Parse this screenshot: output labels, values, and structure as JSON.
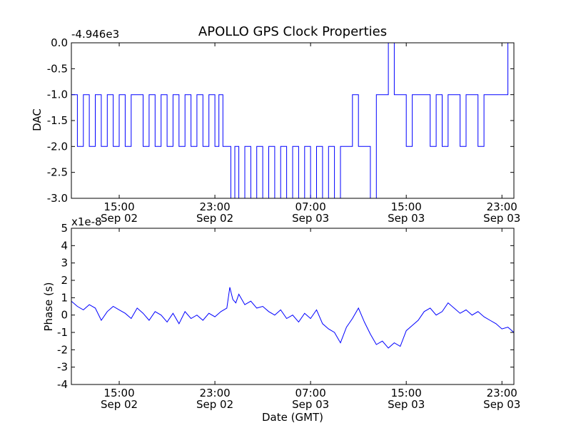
{
  "chart_data": [
    {
      "type": "line",
      "title": "APOLLO GPS Clock Properties",
      "ylabel": "DAC",
      "xlabel": "",
      "offset_text": "-4.946e3",
      "ylim": [
        -3.0,
        0.0
      ],
      "yticks": [
        0.0,
        -0.5,
        -1.0,
        -1.5,
        -2.0,
        -2.5,
        -3.0
      ],
      "ytick_labels": [
        "0.0",
        "-0.5",
        "-1.0",
        "-1.5",
        "-2.0",
        "-2.5",
        "-3.0"
      ],
      "xlim": [
        "2014-09-02 11:00",
        "2014-09-04 00:00"
      ],
      "xticks": [
        "2014-09-02 15:00",
        "2014-09-02 23:00",
        "2014-09-03 07:00",
        "2014-09-03 15:00",
        "2014-09-03 23:00"
      ],
      "xtick_labels": [
        [
          "15:00",
          "Sep 02"
        ],
        [
          "23:00",
          "Sep 02"
        ],
        [
          "07:00",
          "Sep 03"
        ],
        [
          "15:00",
          "Sep 03"
        ],
        [
          "23:00",
          "Sep 03"
        ]
      ],
      "grid": false,
      "color": "#0000ff",
      "series": [
        {
          "x": [
            "2014-09-02 11:00",
            "2014-09-02 11:30",
            "2014-09-02 12:00",
            "2014-09-02 12:30",
            "2014-09-02 13:00",
            "2014-09-02 13:30",
            "2014-09-02 14:00",
            "2014-09-02 14:30",
            "2014-09-02 15:00",
            "2014-09-02 15:30",
            "2014-09-02 16:00",
            "2014-09-02 17:00",
            "2014-09-02 17:30",
            "2014-09-02 18:00",
            "2014-09-02 18:30",
            "2014-09-02 19:00",
            "2014-09-02 19:30",
            "2014-09-02 20:00",
            "2014-09-02 20:30",
            "2014-09-02 21:00",
            "2014-09-02 21:30",
            "2014-09-02 22:00",
            "2014-09-02 22:30",
            "2014-09-02 23:00",
            "2014-09-02 23:20",
            "2014-09-02 23:40",
            "2014-09-03 00:00",
            "2014-09-03 00:20",
            "2014-09-03 00:40",
            "2014-09-03 01:00",
            "2014-09-03 01:30",
            "2014-09-03 02:00",
            "2014-09-03 02:30",
            "2014-09-03 03:00",
            "2014-09-03 03:30",
            "2014-09-03 04:00",
            "2014-09-03 04:30",
            "2014-09-03 05:00",
            "2014-09-03 05:30",
            "2014-09-03 06:00",
            "2014-09-03 06:30",
            "2014-09-03 07:00",
            "2014-09-03 07:30",
            "2014-09-03 08:00",
            "2014-09-03 08:30",
            "2014-09-03 09:00",
            "2014-09-03 09:30",
            "2014-09-03 10:00",
            "2014-09-03 10:30",
            "2014-09-03 11:00",
            "2014-09-03 11:30",
            "2014-09-03 12:00",
            "2014-09-03 12:30",
            "2014-09-03 13:00",
            "2014-09-03 13:30",
            "2014-09-03 14:00",
            "2014-09-03 14:30",
            "2014-09-03 15:00",
            "2014-09-03 15:30",
            "2014-09-03 16:00",
            "2014-09-03 17:00",
            "2014-09-03 17:30",
            "2014-09-03 18:00",
            "2014-09-03 18:30",
            "2014-09-03 19:00",
            "2014-09-03 19:30",
            "2014-09-03 20:00",
            "2014-09-03 20:30",
            "2014-09-03 21:00",
            "2014-09-03 21:30",
            "2014-09-03 22:00",
            "2014-09-03 22:30",
            "2014-09-03 23:00",
            "2014-09-03 23:30",
            "2014-09-04 00:00"
          ],
          "values": [
            -1.0,
            -2.0,
            -1.0,
            -2.0,
            -1.0,
            -2.0,
            -1.0,
            -2.0,
            -1.0,
            -2.0,
            -1.0,
            -2.0,
            -1.0,
            -2.0,
            -1.0,
            -2.0,
            -1.0,
            -2.0,
            -1.0,
            -2.0,
            -1.0,
            -2.0,
            -1.0,
            -2.0,
            -1.0,
            -2.0,
            -2.0,
            -3.0,
            -2.0,
            -3.0,
            -2.0,
            -3.0,
            -2.0,
            -3.0,
            -2.0,
            -3.0,
            -2.0,
            -3.0,
            -2.0,
            -3.0,
            -2.0,
            -3.0,
            -2.0,
            -3.0,
            -2.0,
            -3.0,
            -2.0,
            -2.0,
            -1.0,
            -2.0,
            -2.0,
            -3.0,
            -1.0,
            -1.0,
            0.0,
            -1.0,
            -1.0,
            -2.0,
            -1.0,
            -1.0,
            -2.0,
            -1.0,
            -2.0,
            -1.0,
            -1.0,
            -2.0,
            -1.0,
            -1.0,
            -2.0,
            -1.0,
            -1.0,
            -1.0,
            -1.0,
            0.0,
            -1.0
          ]
        }
      ]
    },
    {
      "type": "line",
      "title": "",
      "ylabel": "Phase (s)",
      "xlabel": "Date (GMT)",
      "offset_text": "x1e-8",
      "ylim": [
        -4,
        5
      ],
      "yticks": [
        5,
        4,
        3,
        2,
        1,
        0,
        -1,
        -2,
        -3,
        -4
      ],
      "ytick_labels": [
        "5",
        "4",
        "3",
        "2",
        "1",
        "0",
        "-1",
        "-2",
        "-3",
        "-4"
      ],
      "xlim": [
        "2014-09-02 11:00",
        "2014-09-04 00:00"
      ],
      "xticks": [
        "2014-09-02 15:00",
        "2014-09-02 23:00",
        "2014-09-03 07:00",
        "2014-09-03 15:00",
        "2014-09-03 23:00"
      ],
      "xtick_labels": [
        [
          "15:00",
          "Sep 02"
        ],
        [
          "23:00",
          "Sep 02"
        ],
        [
          "07:00",
          "Sep 03"
        ],
        [
          "15:00",
          "Sep 03"
        ],
        [
          "23:00",
          "Sep 03"
        ]
      ],
      "grid": false,
      "color": "#0000ff",
      "series": [
        {
          "x": [
            "2014-09-02 11:00",
            "2014-09-02 11:30",
            "2014-09-02 12:00",
            "2014-09-02 12:30",
            "2014-09-02 13:00",
            "2014-09-02 13:30",
            "2014-09-02 14:00",
            "2014-09-02 14:30",
            "2014-09-02 15:00",
            "2014-09-02 15:30",
            "2014-09-02 16:00",
            "2014-09-02 16:30",
            "2014-09-02 17:00",
            "2014-09-02 17:30",
            "2014-09-02 18:00",
            "2014-09-02 18:30",
            "2014-09-02 19:00",
            "2014-09-02 19:30",
            "2014-09-02 20:00",
            "2014-09-02 20:30",
            "2014-09-02 21:00",
            "2014-09-02 21:30",
            "2014-09-02 22:00",
            "2014-09-02 22:30",
            "2014-09-02 23:00",
            "2014-09-02 23:30",
            "2014-09-03 00:00",
            "2014-09-03 00:15",
            "2014-09-03 00:30",
            "2014-09-03 00:45",
            "2014-09-03 01:00",
            "2014-09-03 01:30",
            "2014-09-03 02:00",
            "2014-09-03 02:30",
            "2014-09-03 03:00",
            "2014-09-03 03:30",
            "2014-09-03 04:00",
            "2014-09-03 04:30",
            "2014-09-03 05:00",
            "2014-09-03 05:30",
            "2014-09-03 06:00",
            "2014-09-03 06:30",
            "2014-09-03 07:00",
            "2014-09-03 07:30",
            "2014-09-03 08:00",
            "2014-09-03 08:30",
            "2014-09-03 09:00",
            "2014-09-03 09:30",
            "2014-09-03 10:00",
            "2014-09-03 10:30",
            "2014-09-03 11:00",
            "2014-09-03 11:30",
            "2014-09-03 12:00",
            "2014-09-03 12:30",
            "2014-09-03 13:00",
            "2014-09-03 13:30",
            "2014-09-03 14:00",
            "2014-09-03 14:30",
            "2014-09-03 15:00",
            "2014-09-03 15:30",
            "2014-09-03 16:00",
            "2014-09-03 16:30",
            "2014-09-03 17:00",
            "2014-09-03 17:30",
            "2014-09-03 18:00",
            "2014-09-03 18:30",
            "2014-09-03 19:00",
            "2014-09-03 19:30",
            "2014-09-03 20:00",
            "2014-09-03 20:30",
            "2014-09-03 21:00",
            "2014-09-03 21:30",
            "2014-09-03 22:00",
            "2014-09-03 22:30",
            "2014-09-03 23:00",
            "2014-09-03 23:30",
            "2014-09-04 00:00"
          ],
          "values": [
            0.8,
            0.5,
            0.3,
            0.6,
            0.4,
            -0.3,
            0.2,
            0.5,
            0.3,
            0.1,
            -0.2,
            0.4,
            0.1,
            -0.3,
            0.2,
            0.0,
            -0.4,
            0.1,
            -0.5,
            0.2,
            -0.2,
            0.0,
            -0.3,
            0.1,
            -0.1,
            0.2,
            0.4,
            1.6,
            0.9,
            0.7,
            1.2,
            0.6,
            0.8,
            0.4,
            0.5,
            0.2,
            0.0,
            0.3,
            -0.2,
            0.0,
            -0.4,
            0.1,
            -0.2,
            0.3,
            -0.5,
            -0.8,
            -1.0,
            -1.6,
            -0.7,
            -0.2,
            0.4,
            -0.4,
            -1.1,
            -1.7,
            -1.5,
            -1.9,
            -1.6,
            -1.8,
            -0.9,
            -0.6,
            -0.3,
            0.2,
            0.4,
            0.0,
            0.2,
            0.7,
            0.4,
            0.1,
            0.3,
            0.0,
            0.2,
            -0.1,
            -0.3,
            -0.5,
            -0.8,
            -0.7,
            -1.0
          ]
        }
      ]
    }
  ]
}
